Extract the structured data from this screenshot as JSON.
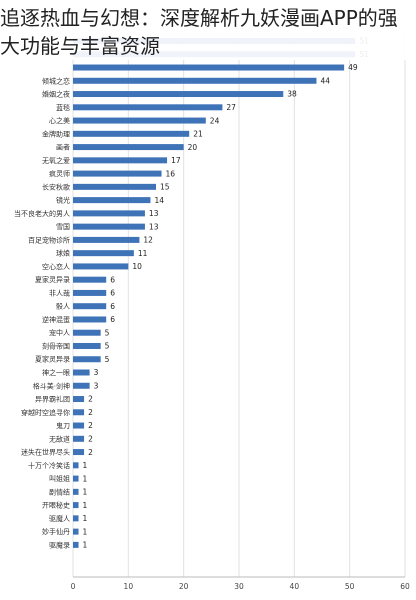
{
  "title": "追逐热血与幻想：深度解析九妖漫画APP的强大功能与丰富资源",
  "colors": {
    "bar": "#3f73b8",
    "grid": "#e2e2e2",
    "text": "#222222"
  },
  "chart_data": {
    "type": "bar",
    "orientation": "horizontal",
    "categories": [
      "",
      "",
      "",
      "倾城之恋",
      "婚姻之夜",
      "蓝毯",
      "心之美",
      "金牌助理",
      "画者",
      "无氧之爱",
      "疯灵师",
      "长安秋歌",
      "镜光",
      "当不良老大的男人",
      "雪国",
      "百足宠物诊所",
      "球娘",
      "空心恋人",
      "夏家灵异录",
      "非人哉",
      "骰人",
      "逆神混蛋",
      "宠中人",
      "刻骨帝国",
      "夏家灵异录",
      "神之一眼",
      "格斗美·剑神",
      "异界霸礼团",
      "穿越时空追寻你",
      "鬼刀",
      "无敌道",
      "迷失在世界尽头",
      "十万个冷笑话",
      "叫姐姐",
      "剧情结",
      "开眼秘史",
      "驱魔人",
      "妙手仙丹",
      "驱魔录"
    ],
    "values": [
      51,
      51,
      49,
      44,
      38,
      27,
      24,
      21,
      20,
      17,
      16,
      15,
      14,
      13,
      13,
      12,
      11,
      10,
      6,
      6,
      6,
      6,
      5,
      5,
      5,
      3,
      3,
      2,
      2,
      2,
      2,
      2,
      1,
      1,
      1,
      1,
      1,
      1,
      1
    ],
    "xlim": [
      0,
      60
    ],
    "xticks": [
      0,
      10,
      20,
      30,
      40,
      50,
      60
    ],
    "grid": true,
    "xlabel": "",
    "ylabel": ""
  }
}
